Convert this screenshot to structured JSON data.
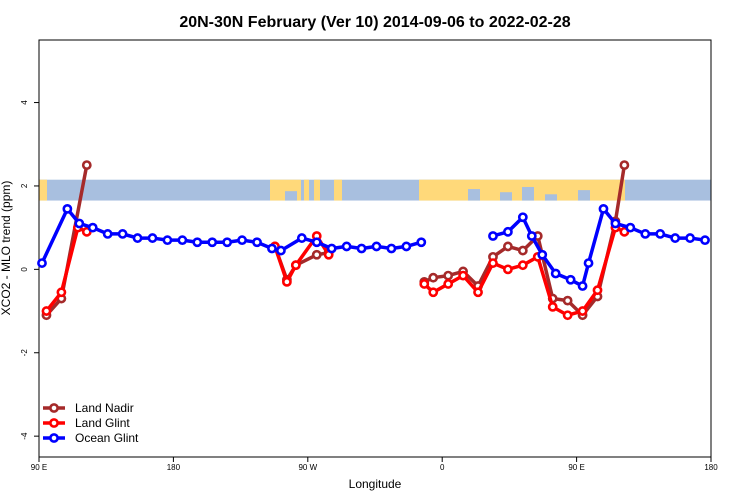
{
  "chart_data": {
    "type": "line",
    "title": "20N-30N February (Ver 10)   2014-09-06 to 2022-02-28",
    "xlabel": "Longitude",
    "ylabel": "XCO2 - MLO trend (ppm)",
    "xlim": [
      0,
      450
    ],
    "ylim": [
      -4.5,
      5.5
    ],
    "x_ticks": [
      {
        "value": 0,
        "label": "90 E"
      },
      {
        "value": 90,
        "label": "180"
      },
      {
        "value": 180,
        "label": "90 W"
      },
      {
        "value": 270,
        "label": "0"
      },
      {
        "value": 360,
        "label": "90 E"
      },
      {
        "value": 450,
        "label": "180"
      }
    ],
    "y_ticks": [
      {
        "value": -4,
        "label": "-4"
      },
      {
        "value": -2,
        "label": "-2"
      },
      {
        "value": 0,
        "label": "0"
      },
      {
        "value": 2,
        "label": "2"
      },
      {
        "value": 4,
        "label": "4"
      }
    ],
    "grid": false,
    "legend_position": "bottom-left",
    "map_strip": {
      "y_range": [
        1.65,
        2.15
      ],
      "ocean_color": "#a8bfdf",
      "land_color": "#ffd97a"
    },
    "series": [
      {
        "name": "Land Nadir",
        "color": "#a52a2a",
        "segments": [
          [
            [
              5,
              -1.1
            ],
            [
              15,
              -0.7
            ],
            [
              32,
              2.5
            ]
          ],
          [
            [
              158,
              0.55
            ],
            [
              166,
              -0.25
            ],
            [
              172,
              0.1
            ],
            [
              186,
              0.35
            ],
            [
              194,
              0.4
            ]
          ],
          [
            [
              258,
              -0.3
            ],
            [
              264,
              -0.2
            ],
            [
              274,
              -0.15
            ],
            [
              284,
              -0.05
            ],
            [
              294,
              -0.4
            ],
            [
              304,
              0.3
            ],
            [
              314,
              0.55
            ],
            [
              324,
              0.45
            ],
            [
              334,
              0.8
            ],
            [
              344,
              -0.7
            ],
            [
              354,
              -0.75
            ],
            [
              364,
              -1.1
            ],
            [
              374,
              -0.65
            ],
            [
              386,
              1.15
            ],
            [
              392,
              2.5
            ]
          ]
        ]
      },
      {
        "name": "Land Glint",
        "color": "#ff0000",
        "segments": [
          [
            [
              5,
              -1.0
            ],
            [
              15,
              -0.55
            ],
            [
              26,
              1.0
            ],
            [
              32,
              0.9
            ]
          ],
          [
            [
              158,
              0.55
            ],
            [
              166,
              -0.3
            ],
            [
              172,
              0.1
            ],
            [
              186,
              0.8
            ],
            [
              194,
              0.35
            ]
          ],
          [
            [
              258,
              -0.35
            ],
            [
              264,
              -0.55
            ],
            [
              274,
              -0.35
            ],
            [
              284,
              -0.15
            ],
            [
              294,
              -0.55
            ],
            [
              304,
              0.15
            ],
            [
              314,
              0.0
            ],
            [
              324,
              0.1
            ],
            [
              334,
              0.3
            ],
            [
              344,
              -0.9
            ],
            [
              354,
              -1.1
            ],
            [
              364,
              -1.0
            ],
            [
              374,
              -0.5
            ],
            [
              386,
              1.0
            ],
            [
              392,
              0.9
            ]
          ]
        ]
      },
      {
        "name": "Ocean Glint",
        "color": "#0000ff",
        "segments": [
          [
            [
              2,
              0.15
            ],
            [
              19,
              1.45
            ],
            [
              27,
              1.1
            ],
            [
              36,
              1.0
            ],
            [
              46,
              0.85
            ],
            [
              56,
              0.85
            ],
            [
              66,
              0.75
            ],
            [
              76,
              0.75
            ],
            [
              86,
              0.7
            ],
            [
              96,
              0.7
            ],
            [
              106,
              0.65
            ],
            [
              116,
              0.65
            ],
            [
              126,
              0.65
            ],
            [
              136,
              0.7
            ],
            [
              146,
              0.65
            ],
            [
              156,
              0.5
            ],
            [
              162,
              0.45
            ],
            [
              176,
              0.75
            ],
            [
              186,
              0.65
            ],
            [
              196,
              0.5
            ],
            [
              206,
              0.55
            ],
            [
              216,
              0.5
            ],
            [
              226,
              0.55
            ],
            [
              236,
              0.5
            ],
            [
              246,
              0.55
            ],
            [
              256,
              0.65
            ]
          ],
          [
            [
              304,
              0.8
            ],
            [
              314,
              0.9
            ],
            [
              324,
              1.25
            ],
            [
              330,
              0.8
            ],
            [
              337,
              0.35
            ],
            [
              346,
              -0.1
            ],
            [
              356,
              -0.25
            ],
            [
              364,
              -0.4
            ],
            [
              368,
              0.15
            ],
            [
              378,
              1.45
            ],
            [
              386,
              1.1
            ],
            [
              396,
              1.0
            ],
            [
              406,
              0.85
            ],
            [
              416,
              0.85
            ],
            [
              426,
              0.75
            ],
            [
              436,
              0.75
            ],
            [
              446,
              0.7
            ]
          ]
        ]
      }
    ]
  }
}
